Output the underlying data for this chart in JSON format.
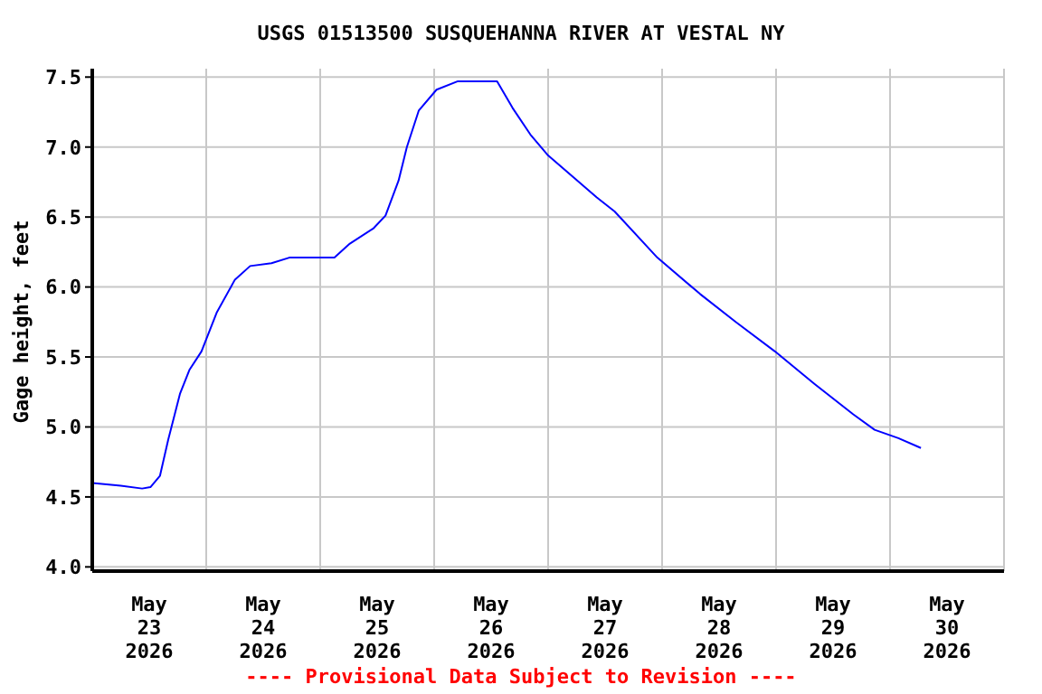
{
  "chart_data": {
    "type": "line",
    "title": "USGS 01513500 SUSQUEHANNA RIVER AT VESTAL NY",
    "ylabel": "Gage height, feet",
    "annotations": [
      "---- Provisional Data Subject to Revision ----"
    ],
    "x": [
      "2026-05-23T00:00",
      "2026-05-23T06:00",
      "2026-05-23T10:30",
      "2026-05-23T12:15",
      "2026-05-23T14:15",
      "2026-05-23T16:00",
      "2026-05-23T18:30",
      "2026-05-23T20:30",
      "2026-05-23T23:00",
      "2026-05-24T02:15",
      "2026-05-24T06:00",
      "2026-05-24T09:15",
      "2026-05-24T13:45",
      "2026-05-24T17:30",
      "2026-05-25T03:00",
      "2026-05-25T06:15",
      "2026-05-25T11:15",
      "2026-05-25T13:45",
      "2026-05-25T16:30",
      "2026-05-25T18:15",
      "2026-05-25T20:45",
      "2026-05-26T00:30",
      "2026-05-26T05:00",
      "2026-05-26T13:15",
      "2026-05-26T16:30",
      "2026-05-26T20:15",
      "2026-05-27T00:00",
      "2026-05-27T10:15",
      "2026-05-27T14:00",
      "2026-05-27T23:00",
      "2026-05-28T08:00",
      "2026-05-28T15:30",
      "2026-05-28T23:45",
      "2026-05-29T08:00",
      "2026-05-29T16:15",
      "2026-05-29T20:45",
      "2026-05-30T01:45",
      "2026-05-30T06:30"
    ],
    "series": [
      {
        "color": "#0000ff",
        "values": [
          4.6,
          4.58,
          4.56,
          4.57,
          4.65,
          4.91,
          5.24,
          5.41,
          5.54,
          5.82,
          6.05,
          6.15,
          6.17,
          6.21,
          6.21,
          6.31,
          6.42,
          6.51,
          6.76,
          7.0,
          7.26,
          7.41,
          7.47,
          7.47,
          7.28,
          7.09,
          6.94,
          6.64,
          6.54,
          6.21,
          5.95,
          5.75,
          5.54,
          5.31,
          5.09,
          4.98,
          4.92,
          4.85
        ]
      }
    ],
    "xlim": [
      "2026-05-23T00:00",
      "2026-05-31T00:00"
    ],
    "xticks": [
      {
        "value": "2026-05-23T00:00",
        "label": null
      },
      {
        "value": "2026-05-23T12:00",
        "label": "May 23 2026"
      },
      {
        "value": "2026-05-24T00:00",
        "label": null
      },
      {
        "value": "2026-05-24T12:00",
        "label": "May 24 2026"
      },
      {
        "value": "2026-05-25T00:00",
        "label": null
      },
      {
        "value": "2026-05-25T12:00",
        "label": "May 25 2026"
      },
      {
        "value": "2026-05-26T00:00",
        "label": null
      },
      {
        "value": "2026-05-26T12:00",
        "label": "May 26 2026"
      },
      {
        "value": "2026-05-27T00:00",
        "label": null
      },
      {
        "value": "2026-05-27T12:00",
        "label": "May 27 2026"
      },
      {
        "value": "2026-05-28T00:00",
        "label": null
      },
      {
        "value": "2026-05-28T12:00",
        "label": "May 28 2026"
      },
      {
        "value": "2026-05-29T00:00",
        "label": null
      },
      {
        "value": "2026-05-29T12:00",
        "label": "May 29 2026"
      },
      {
        "value": "2026-05-30T00:00",
        "label": null
      },
      {
        "value": "2026-05-30T12:00",
        "label": "May 30 2026"
      },
      {
        "value": "2026-05-31T00:00",
        "label": null
      }
    ],
    "ylim": [
      3.97,
      7.56
    ],
    "yticks": [
      {
        "value": 4,
        "label": "4.0"
      },
      {
        "value": 4.5,
        "label": "4.5"
      },
      {
        "value": 5,
        "label": "5.0"
      },
      {
        "value": 5.5,
        "label": "5.5"
      },
      {
        "value": 6,
        "label": "6.0"
      },
      {
        "value": 6.5,
        "label": "6.5"
      },
      {
        "value": 7,
        "label": "7.0"
      },
      {
        "value": 7.5,
        "label": "7.5"
      }
    ],
    "grid": true,
    "legend": false,
    "marker": "none",
    "line_style": "solid"
  }
}
